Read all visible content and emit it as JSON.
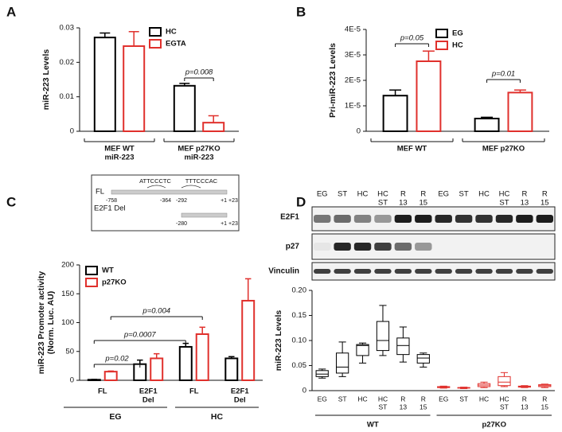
{
  "panel_labels": [
    "A",
    "B",
    "C",
    "D"
  ],
  "schematic": {
    "rows": [
      "FL",
      "E2F1 Del"
    ],
    "sites": [
      "ATTCCCTC",
      "TTTCCCAC"
    ],
    "fl_positions": [
      "-758",
      "-364",
      "-292",
      "+1 +23"
    ],
    "del_positions": [
      "-280",
      "+1 +23"
    ]
  },
  "blot": {
    "lanes": [
      [
        "EG"
      ],
      [
        "ST"
      ],
      [
        "HC"
      ],
      [
        "HC",
        "ST"
      ],
      [
        "R",
        "13"
      ],
      [
        "R",
        "15"
      ],
      [
        "EG"
      ],
      [
        "ST"
      ],
      [
        "HC"
      ],
      [
        "HC",
        "ST"
      ],
      [
        "R",
        "13"
      ],
      [
        "R",
        "15"
      ]
    ],
    "rows": [
      "E2F1",
      "p27",
      "Vinculin"
    ]
  },
  "chart_data": [
    {
      "type": "bar",
      "ylabel": "miR-223 Levels",
      "categories": [
        [
          "MEF WT",
          "miR-223"
        ],
        [
          "MEF p27KO",
          "miR-223"
        ]
      ],
      "series": [
        {
          "name": "HC",
          "color": "#000000",
          "values": [
            0.0272,
            0.0132
          ],
          "errors": [
            0.0013,
            0.0007
          ]
        },
        {
          "name": "EGTA",
          "color": "#e0302c",
          "values": [
            0.0247,
            0.0025
          ],
          "errors": [
            0.0042,
            0.002
          ]
        }
      ],
      "ylim": [
        0,
        0.03
      ],
      "yticks": [
        0,
        0.01,
        0.02,
        0.03
      ],
      "annotations": [
        "p=0.008"
      ]
    },
    {
      "type": "bar",
      "ylabel": "Pri-miR-223 Levels",
      "categories": [
        [
          "MEF WT"
        ],
        [
          "MEF p27KO"
        ]
      ],
      "series": [
        {
          "name": "EG",
          "color": "#000000",
          "values": [
            1.4e-05,
            5e-06
          ],
          "errors": [
            2.2e-06,
            5e-07
          ]
        },
        {
          "name": "HC",
          "color": "#e0302c",
          "values": [
            2.75e-05,
            1.52e-05
          ],
          "errors": [
            4e-06,
            1e-06
          ]
        }
      ],
      "ylim": [
        0,
        4e-05
      ],
      "yticks": [
        0,
        {
          "value": 1e-05,
          "label": "1E-5"
        },
        {
          "value": 2e-05,
          "label": "2E-5"
        },
        {
          "value": 3e-05,
          "label": "3E-5"
        },
        {
          "value": 4e-05,
          "label": "4E-5"
        }
      ],
      "annotations": [
        "p=0.05",
        "p=0.01"
      ]
    },
    {
      "type": "bar",
      "ylabel": [
        "miR-223 Promoter activity",
        "(Norm. Luc. AU)"
      ],
      "categories": [
        [
          "FL"
        ],
        [
          "E2F1",
          "Del"
        ],
        [
          "FL"
        ],
        [
          "E2F1",
          "Del"
        ]
      ],
      "groups": [
        "EG",
        "HC"
      ],
      "series": [
        {
          "name": "WT",
          "color": "#000000",
          "values": [
            1,
            28,
            58,
            38
          ],
          "errors": [
            0.5,
            7,
            6,
            3
          ]
        },
        {
          "name": "p27KO",
          "color": "#e0302c",
          "values": [
            15,
            38,
            80,
            138
          ],
          "errors": [
            1,
            8,
            12,
            38
          ]
        }
      ],
      "ylim": [
        0,
        200
      ],
      "yticks": [
        0,
        50,
        100,
        150,
        200
      ],
      "annotations": [
        "p=0.02",
        "p=0.0007",
        "p=0.004"
      ]
    },
    {
      "type": "box",
      "ylabel": "miR-223 Levels",
      "categories": [
        [
          "EG"
        ],
        [
          "ST"
        ],
        [
          "HC"
        ],
        [
          "HC",
          "ST"
        ],
        [
          "R",
          "13"
        ],
        [
          "R",
          "15"
        ]
      ],
      "series": [
        {
          "name": "WT",
          "color": "#000000",
          "boxes": [
            [
              0.025,
              0.028,
              0.033,
              0.04,
              0.043
            ],
            [
              0.028,
              0.035,
              0.047,
              0.075,
              0.097
            ],
            [
              0.055,
              0.07,
              0.09,
              0.092,
              0.095
            ],
            [
              0.07,
              0.08,
              0.1,
              0.138,
              0.17
            ],
            [
              0.057,
              0.072,
              0.09,
              0.105,
              0.127
            ],
            [
              0.047,
              0.055,
              0.065,
              0.072,
              0.075
            ]
          ]
        },
        {
          "name": "p27KO",
          "color": "#e0302c",
          "boxes": [
            [
              0.005,
              0.006,
              0.007,
              0.008,
              0.009
            ],
            [
              0.004,
              0.005,
              0.006,
              0.006,
              0.007
            ],
            [
              0.006,
              0.008,
              0.011,
              0.014,
              0.017
            ],
            [
              0.008,
              0.01,
              0.017,
              0.028,
              0.036
            ],
            [
              0.006,
              0.007,
              0.008,
              0.009,
              0.01
            ],
            [
              0.006,
              0.008,
              0.01,
              0.012,
              0.013
            ]
          ]
        }
      ],
      "ylim": [
        0,
        0.2
      ],
      "yticks": [
        0,
        0.05,
        {
          "value": 0.1,
          "label": "0.10"
        },
        0.15,
        {
          "value": 0.2,
          "label": "0.20"
        }
      ]
    }
  ]
}
